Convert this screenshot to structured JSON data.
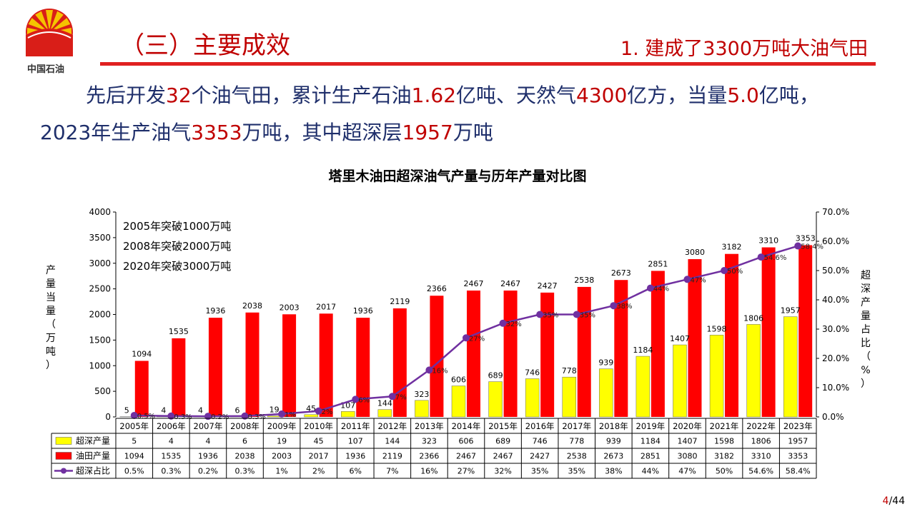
{
  "header": {
    "logo_text": "中国石油",
    "section_title": "（三）主要成效",
    "sub_title": "1. 建成了3300万吨大油气田"
  },
  "intro": {
    "line1": {
      "p1": "先后开发",
      "n1": "32",
      "p2": "个油气田，累计生产石油",
      "n2": "1.62",
      "p3": "亿吨、天然气",
      "n3": "4300",
      "p4": "亿方，当量",
      "n4": "5.0",
      "p5": "亿吨，"
    },
    "line2": {
      "p1": "2023年生产油气",
      "n1": "3353",
      "p2": "万吨，其中超深层",
      "n2": "1957",
      "p3": "万吨"
    }
  },
  "page": {
    "current": "4",
    "total": "/44"
  },
  "colors": {
    "brand_red": "#c00000",
    "text_blue": "#1f2f6b",
    "bar_yellow": "#ffff00",
    "bar_red": "#ff0000",
    "line_purple": "#7030a0"
  },
  "chart_data": {
    "type": "bar",
    "title": "塔里木油田超深油气产量与历年产量对比图",
    "ylabel_left": "产量当量（万吨）",
    "ylabel_right": "超深产量占比（%）",
    "left_ticks": [
      "4000",
      "3500",
      "3000",
      "2500",
      "2000",
      "1500",
      "1000",
      "500",
      "0"
    ],
    "right_ticks": [
      "70.0%",
      "60.0%",
      "50.0%",
      "40.0%",
      "30.0%",
      "20.0%",
      "10.0%",
      "0.0%"
    ],
    "ylim_left": [
      0,
      4000
    ],
    "ylim_right": [
      0,
      70
    ],
    "annotations": [
      "2005年突破1000万吨",
      "2008年突破2000万吨",
      "2020年突破3000万吨"
    ],
    "categories": [
      "2005年",
      "2006年",
      "2007年",
      "2008年",
      "2009年",
      "2010年",
      "2011年",
      "2012年",
      "2013年",
      "2014年",
      "2015年",
      "2016年",
      "2017年",
      "2018年",
      "2019年",
      "2020年",
      "2021年",
      "2022年",
      "2023年"
    ],
    "series": [
      {
        "name": "超深产量",
        "kind": "bar",
        "color": "#ffff00",
        "values": [
          5,
          4,
          4,
          6,
          19,
          45,
          107,
          144,
          323,
          606,
          689,
          746,
          778,
          939,
          1184,
          1407,
          1598,
          1806,
          1957
        ]
      },
      {
        "name": "油田产量",
        "kind": "bar",
        "color": "#ff0000",
        "values": [
          1094,
          1535,
          1936,
          2038,
          2003,
          2017,
          1936,
          2119,
          2366,
          2467,
          2467,
          2427,
          2538,
          2673,
          2851,
          3080,
          3182,
          3310,
          3353
        ]
      },
      {
        "name": "超深占比",
        "kind": "line",
        "color": "#7030a0",
        "values": [
          0.5,
          0.3,
          0.2,
          0.3,
          1,
          2,
          6,
          7,
          16,
          27,
          32,
          35,
          35,
          38,
          44,
          47,
          50,
          54.6,
          58.4
        ],
        "labels": [
          "0.5%",
          "0.3%",
          "0.2%",
          "0.3%",
          "1%",
          "2%",
          "6%",
          "7%",
          "16%",
          "27%",
          "32%",
          "35%",
          "35%",
          "38%",
          "44%",
          "47%",
          "50%",
          "54.6%",
          "58.4%"
        ]
      }
    ],
    "grid": false,
    "legend": "table-below"
  }
}
